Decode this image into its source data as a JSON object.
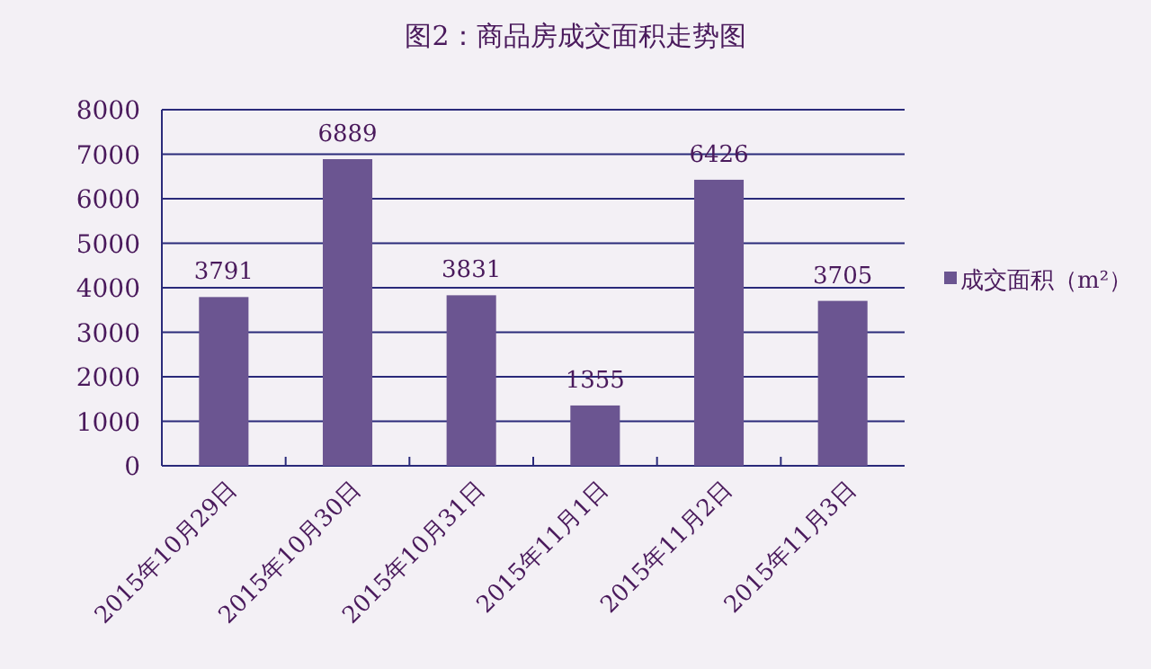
{
  "chart_data": {
    "type": "bar",
    "title": "图2：商品房成交面积走势图",
    "categories": [
      "2015年10月29日",
      "2015年10月30日",
      "2015年10月31日",
      "2015年11月1日",
      "2015年11月2日",
      "2015年11月3日"
    ],
    "series": [
      {
        "name": "成交面积（m²）",
        "color": "#6b5591",
        "values": [
          3791,
          6889,
          3831,
          1355,
          6426,
          3705
        ]
      }
    ],
    "ylim": [
      0,
      8000
    ],
    "yticks": [
      0,
      1000,
      2000,
      3000,
      4000,
      5000,
      6000,
      7000,
      8000
    ],
    "grid": "y",
    "legend": "right",
    "data_labels": true
  }
}
